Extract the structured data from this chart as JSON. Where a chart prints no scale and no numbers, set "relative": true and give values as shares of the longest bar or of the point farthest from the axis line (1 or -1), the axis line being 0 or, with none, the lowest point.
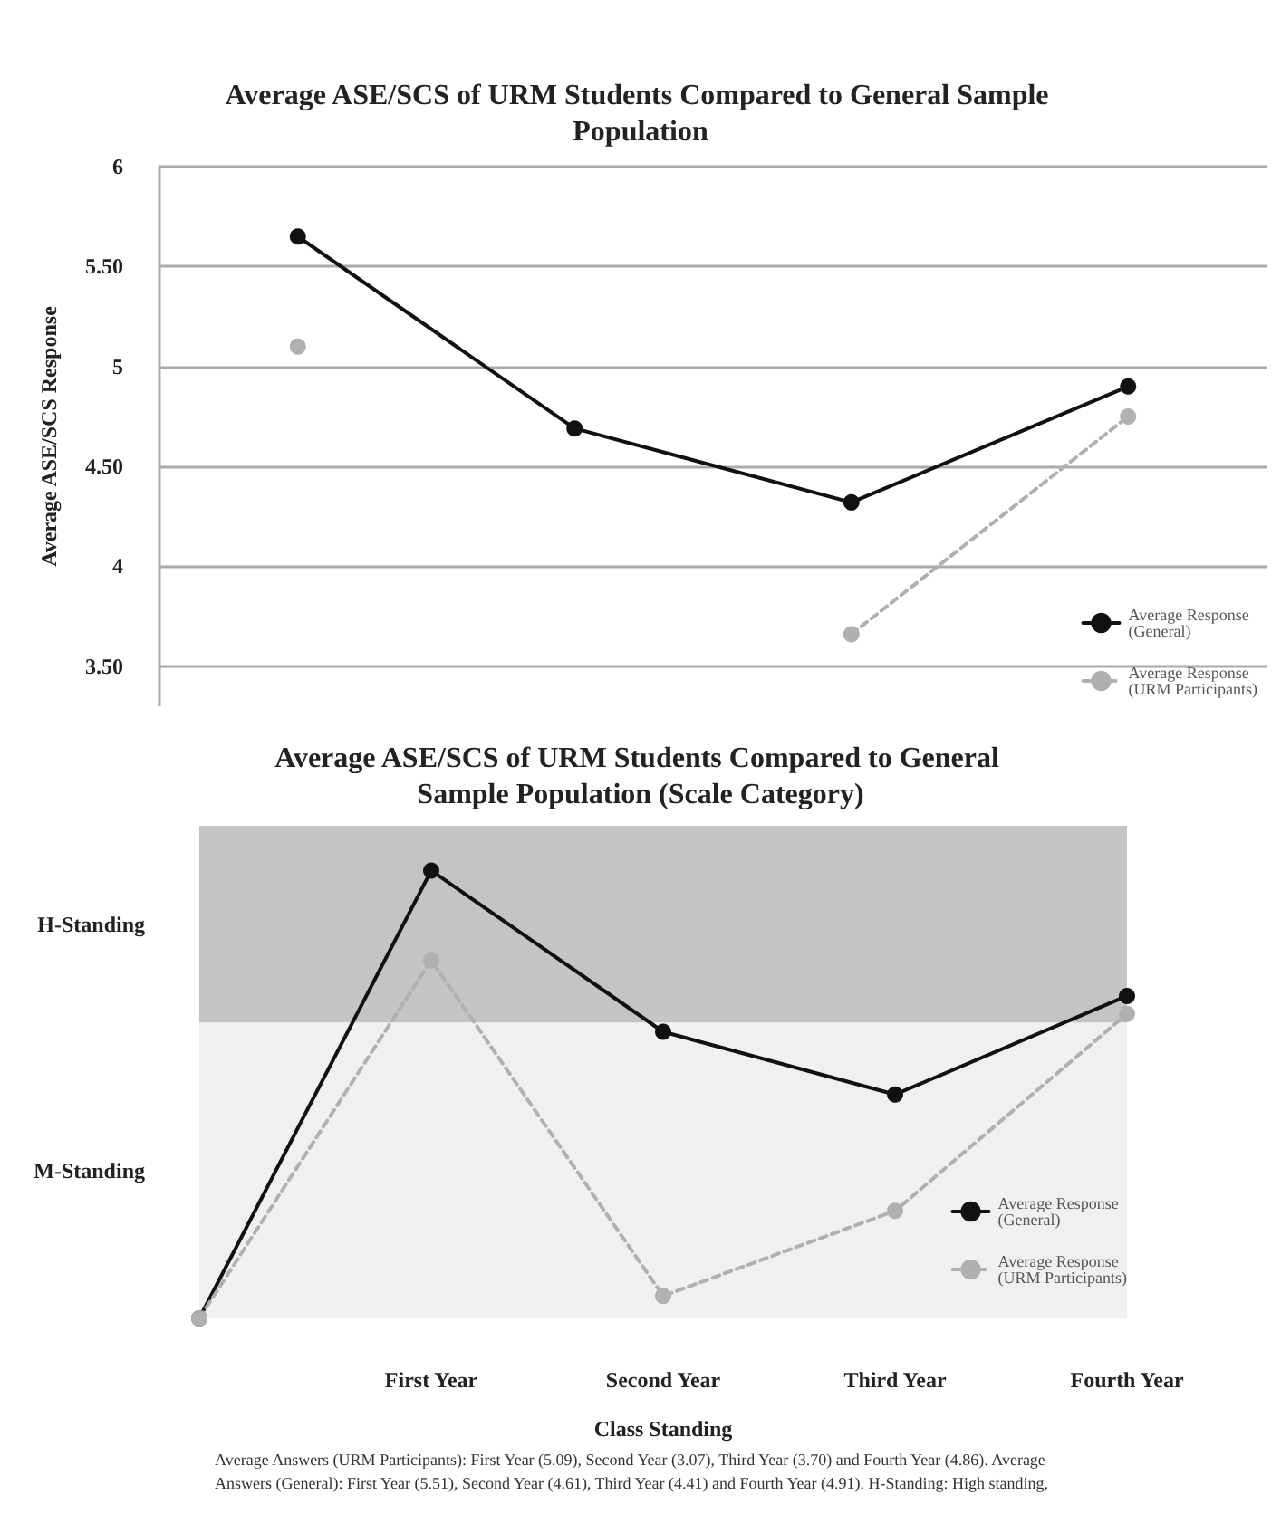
{
  "chart_data": [
    {
      "type": "line",
      "title": "Average ASE/SCS of URM Students Compared to General Sample Population",
      "ylabel": "Average ASE/SCS Response",
      "categories": [
        null,
        null,
        null,
        null
      ],
      "series": [
        {
          "name": "Average Response (General)",
          "color": "#111111",
          "line_style": "solid",
          "values": [
            5.65,
            4.69,
            4.32,
            4.9
          ]
        },
        {
          "name": "Average Response (URM Participants)",
          "color": "#b0b0b0",
          "line_style": "dashed",
          "values": [
            5.1,
            null,
            3.66,
            4.75
          ]
        }
      ],
      "ylim": [
        3.3,
        6
      ],
      "yticks": [
        {
          "value": 3.5,
          "label": "3.50"
        },
        4,
        {
          "value": 4.5,
          "label": "4.50"
        },
        5,
        {
          "value": 5.5,
          "label": "5.50"
        },
        6
      ],
      "grid": "y",
      "legend": "bottom right",
      "marker": "circle",
      "tick_labels": "y"
    },
    {
      "type": "line",
      "title": "Average ASE/SCS of URM Students Compared to General Sample Population (Scale Category)",
      "xlabel": "Class Standing",
      "categories": [
        null,
        "First Year",
        "Second Year",
        "Third Year",
        "Fourth Year"
      ],
      "relative": true,
      "series": [
        {
          "name": "Average Response (General)",
          "color": "#111111",
          "line_style": "solid",
          "values": [
            0,
            1,
            0.64,
            0.5,
            0.72
          ]
        },
        {
          "name": "Average Response (URM Participants)",
          "color": "#b0b0b0",
          "line_style": "dashed",
          "values": [
            0,
            0.8,
            0.05,
            0.24,
            0.68
          ]
        }
      ],
      "bands": [
        {
          "axis": "y",
          "from": 0.66,
          "to": 1.1,
          "label": "H-Standing",
          "color": "#c4c4c4"
        },
        {
          "axis": "y",
          "from": 0,
          "to": 0.66,
          "label": "M-Standing",
          "color": "#f0f0f0"
        }
      ],
      "legend": "bottom right",
      "marker": "circle",
      "tick_labels": "x",
      "annotations": [
        "Average Answers (URM Participants): First Year (5.09), Second Year (3.07), Third Year (3.70) and Fourth Year (4.86). Average Answers (General): First Year (5.51), Second Year (4.61), Third Year (4.41) and Fourth Year (4.91). H-Standing: High standing,"
      ]
    }
  ]
}
